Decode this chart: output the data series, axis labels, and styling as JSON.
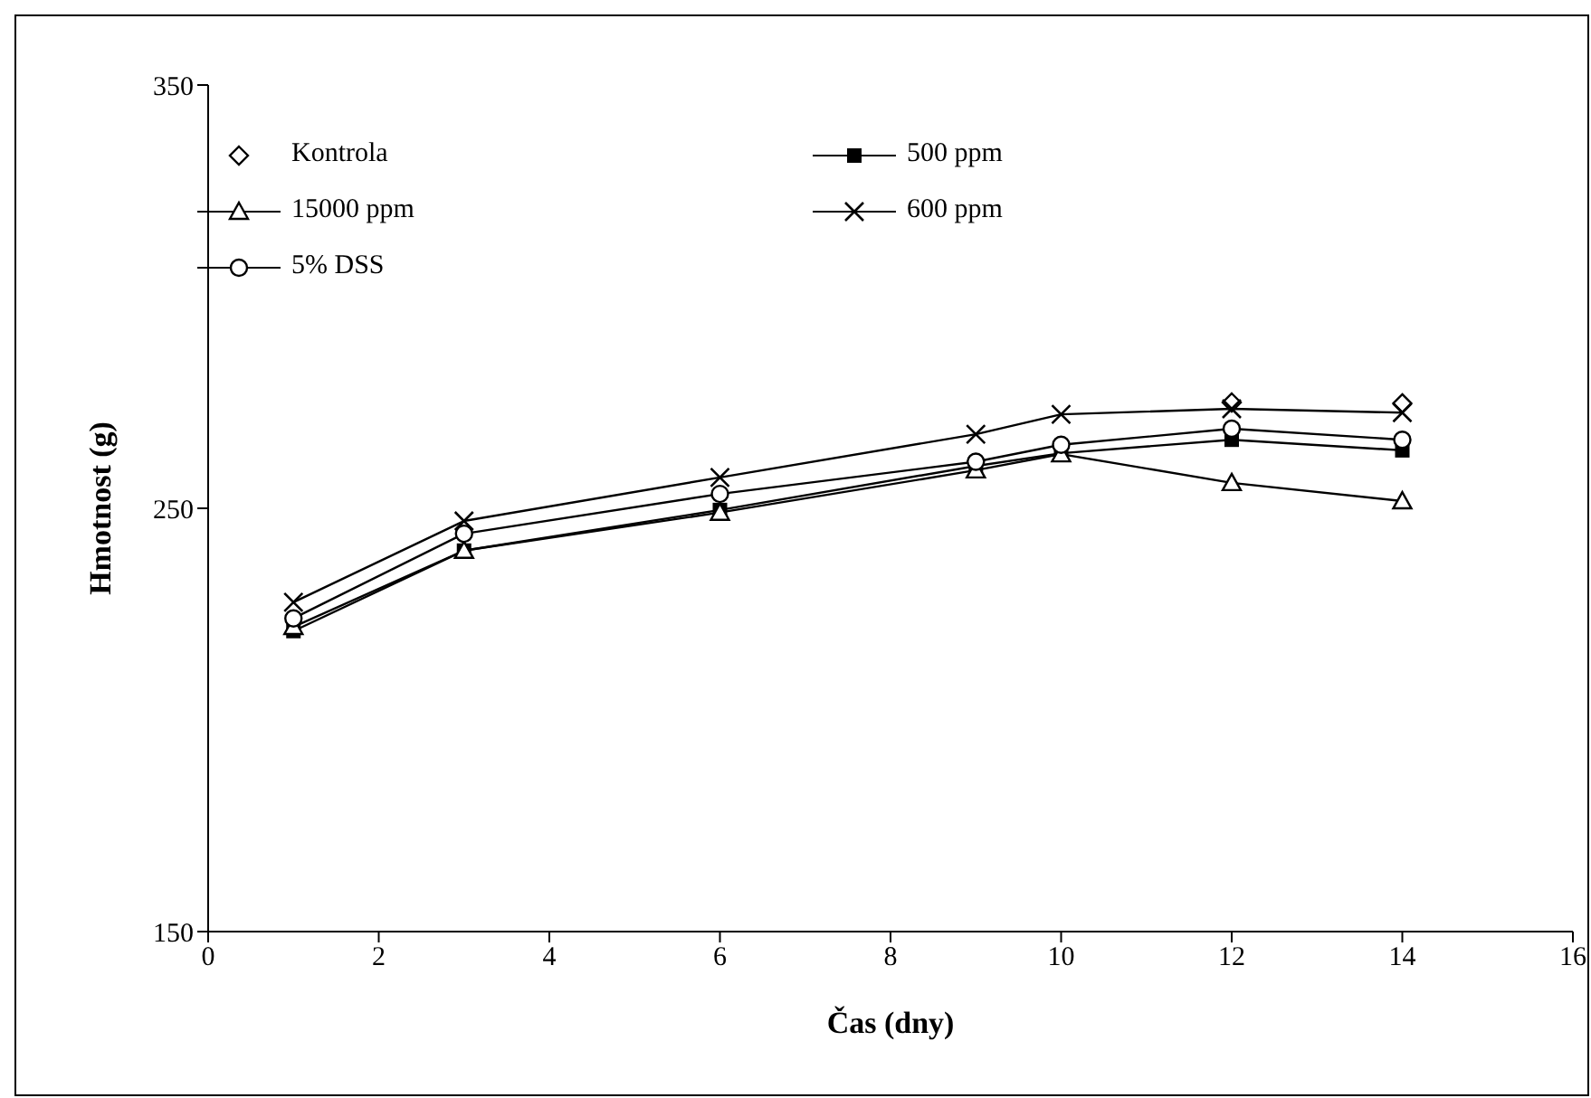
{
  "chart_data": {
    "type": "line",
    "xlabel": "Čas (dny)",
    "ylabel": "Hmotnost (g)",
    "x": [
      1,
      3,
      6,
      9,
      10,
      12,
      14
    ],
    "xlim": [
      0,
      16
    ],
    "xticks": [
      0,
      2,
      4,
      6,
      8,
      10,
      12,
      14,
      16
    ],
    "ylim": [
      150,
      350
    ],
    "yticks": [
      150,
      250,
      350
    ],
    "grid": false,
    "legend": "top",
    "series": [
      {
        "name": "Kontrola",
        "type": "scatter",
        "color": "#000000",
        "marker": "diamond",
        "values": [
          null,
          null,
          null,
          null,
          null,
          275,
          274.8
        ]
      },
      {
        "name": "500 ppm",
        "color": "#000000",
        "marker": "square",
        "line_style": "solid",
        "values": [
          221,
          240,
          249.6,
          260,
          263,
          266.2,
          263.7
        ]
      },
      {
        "name": "15000 ppm",
        "color": "#000000",
        "marker": "triangle",
        "line_style": "solid",
        "values": [
          222,
          240,
          249,
          259,
          262.8,
          256,
          251.7
        ]
      },
      {
        "name": "600 ppm",
        "color": "#000000",
        "marker": "cross",
        "line_style": "solid",
        "values": [
          227.8,
          247,
          257.3,
          267.5,
          272.2,
          273.5,
          272.6
        ]
      },
      {
        "name": "5% DSS",
        "color": "#000000",
        "marker": "circle",
        "line_style": "solid",
        "values": [
          224,
          244,
          253.4,
          261,
          265,
          268.8,
          266.2
        ]
      }
    ]
  }
}
